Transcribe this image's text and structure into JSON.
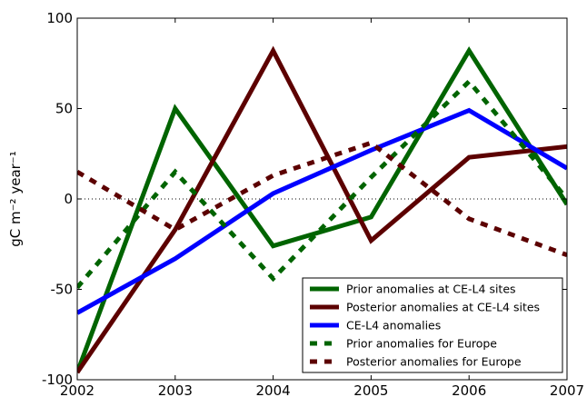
{
  "chart_data": {
    "type": "line",
    "title": "",
    "xlabel": "",
    "ylabel": "gC m⁻² year⁻¹",
    "xlim": [
      2002,
      2007
    ],
    "ylim": [
      -100,
      100
    ],
    "x_ticks": [
      "2002",
      "2003",
      "2004",
      "2005",
      "2006",
      "2007"
    ],
    "y_ticks": [
      "-100",
      "-50",
      "0",
      "50",
      "100"
    ],
    "grid": false,
    "zero_line": "dotted",
    "legend_position": "lower-right",
    "series": [
      {
        "name": "Prior anomalies at CE-L4 sites",
        "color": "#006400",
        "dash": "solid",
        "x": [
          2002,
          2003,
          2004,
          2005,
          2006,
          2007
        ],
        "y": [
          -96,
          50,
          -26,
          -10,
          82,
          -3
        ]
      },
      {
        "name": "Posterior anomalies at CE-L4 sites",
        "color": "#5c0000",
        "dash": "solid",
        "x": [
          2002,
          2003,
          2004,
          2005,
          2006,
          2007
        ],
        "y": [
          -96,
          -17,
          82,
          -23,
          23,
          29
        ]
      },
      {
        "name": "CE-L4 anomalies",
        "color": "#0000ff",
        "dash": "solid",
        "x": [
          2002,
          2003,
          2004,
          2005,
          2006,
          2007
        ],
        "y": [
          -63,
          -33,
          3,
          27,
          49,
          17
        ]
      },
      {
        "name": "Prior anomalies for Europe",
        "color": "#006400",
        "dash": "dashed",
        "x": [
          2002,
          2003,
          2004,
          2005,
          2006,
          2007
        ],
        "y": [
          -49,
          15,
          -44,
          12,
          65,
          0
        ]
      },
      {
        "name": "Posterior anomalies for Europe",
        "color": "#5c0000",
        "dash": "dashed",
        "x": [
          2002,
          2003,
          2004,
          2005,
          2006,
          2007
        ],
        "y": [
          15,
          -17,
          13,
          31,
          -11,
          -31
        ]
      }
    ]
  }
}
